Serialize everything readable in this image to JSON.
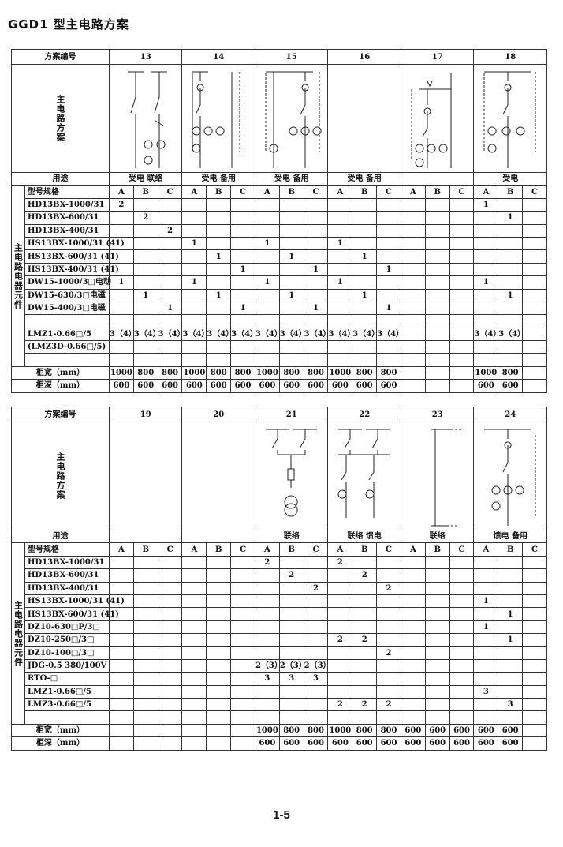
{
  "title": "GGD1 型主电路方案",
  "page_number": "1-5",
  "labels": {
    "scheme_no": "方案编号",
    "circuit": "主电路方案",
    "purpose": "用途",
    "model": "型号规格",
    "components": "主电路电器元件",
    "width": "柜宽（mm）",
    "depth": "柜深（mm）",
    "sub": [
      "A",
      "B",
      "C"
    ]
  },
  "tables": [
    {
      "schemes": [
        "13",
        "14",
        "15",
        "16",
        "17",
        "18"
      ],
      "purposes": [
        "受电 联络",
        "受电 备用",
        "受电 备用",
        "受电 备用",
        "",
        "受电"
      ],
      "rows": [
        {
          "name": "HD13BX-1000/31",
          "v": [
            "2",
            "",
            "",
            "",
            "",
            "",
            "",
            "",
            "",
            "",
            "",
            "",
            "",
            "",
            "",
            "1",
            "",
            ""
          ]
        },
        {
          "name": "HD13BX-600/31",
          "v": [
            "",
            "2",
            "",
            "",
            "",
            "",
            "",
            "",
            "",
            "",
            "",
            "",
            "",
            "",
            "",
            "",
            "1",
            ""
          ]
        },
        {
          "name": "HD13BX-400/31",
          "v": [
            "",
            "",
            "2",
            "",
            "",
            "",
            "",
            "",
            "",
            "",
            "",
            "",
            "",
            "",
            "",
            "",
            "",
            ""
          ]
        },
        {
          "name": "HS13BX-1000/31 (41)",
          "v": [
            "",
            "",
            "",
            "1",
            "",
            "",
            "1",
            "",
            "",
            "1",
            "",
            "",
            "",
            "",
            "",
            "",
            "",
            ""
          ]
        },
        {
          "name": "HS13BX-600/31 (41)",
          "v": [
            "",
            "",
            "",
            "",
            "1",
            "",
            "",
            "1",
            "",
            "",
            "1",
            "",
            "",
            "",
            "",
            "",
            "",
            ""
          ]
        },
        {
          "name": "HS13BX-400/31 (41)",
          "v": [
            "",
            "",
            "",
            "",
            "",
            "1",
            "",
            "",
            "1",
            "",
            "",
            "1",
            "",
            "",
            "",
            "",
            "",
            ""
          ]
        },
        {
          "name": "DW15-1000/3□电动",
          "v": [
            "1",
            "",
            "",
            "1",
            "",
            "",
            "1",
            "",
            "",
            "1",
            "",
            "",
            "",
            "",
            "",
            "1",
            "",
            ""
          ]
        },
        {
          "name": "DW15-630/3□电磁",
          "v": [
            "",
            "1",
            "",
            "",
            "1",
            "",
            "",
            "1",
            "",
            "",
            "1",
            "",
            "",
            "",
            "",
            "",
            "1",
            ""
          ]
        },
        {
          "name": "DW15-400/3□电磁",
          "v": [
            "",
            "",
            "1",
            "",
            "",
            "1",
            "",
            "",
            "1",
            "",
            "",
            "1",
            "",
            "",
            "",
            "",
            "",
            ""
          ]
        },
        {
          "name": "",
          "v": [
            "",
            "",
            "",
            "",
            "",
            "",
            "",
            "",
            "",
            "",
            "",
            "",
            "",
            "",
            "",
            "",
            "",
            ""
          ]
        },
        {
          "name": "LMZ1-0.66□/5",
          "v": [
            "3（4）",
            "3（4）",
            "3（4）",
            "3（4）",
            "3（4）",
            "3（4）",
            "3（4）",
            "3（4）",
            "3（4）",
            "3（4）",
            "3（4）",
            "3（4）",
            "",
            "",
            "",
            "3（4）",
            "3（4）",
            ""
          ]
        },
        {
          "name": "(LMZ3D-0.66□/5)",
          "v": [
            "",
            "",
            "",
            "",
            "",
            "",
            "",
            "",
            "",
            "",
            "",
            "",
            "",
            "",
            "",
            "",
            "",
            ""
          ]
        },
        {
          "name": "",
          "v": [
            "",
            "",
            "",
            "",
            "",
            "",
            "",
            "",
            "",
            "",
            "",
            "",
            "",
            "",
            "",
            "",
            "",
            ""
          ]
        }
      ],
      "width": [
        "1000",
        "800",
        "800",
        "1000",
        "800",
        "800",
        "1000",
        "800",
        "800",
        "1000",
        "800",
        "800",
        "",
        "",
        "",
        "1000",
        "800",
        ""
      ],
      "depth": [
        "600",
        "600",
        "600",
        "600",
        "600",
        "600",
        "600",
        "600",
        "600",
        "600",
        "600",
        "600",
        "",
        "",
        "",
        "600",
        "600",
        ""
      ]
    },
    {
      "schemes": [
        "19",
        "20",
        "21",
        "22",
        "23",
        "24"
      ],
      "purposes": [
        "",
        "",
        "联络",
        "联络 馈电",
        "联络",
        "馈电 备用"
      ],
      "rows": [
        {
          "name": "HD13BX-1000/31",
          "v": [
            "",
            "",
            "",
            "",
            "",
            "",
            "2",
            "",
            "",
            "2",
            "",
            "",
            "",
            "",
            "",
            "",
            "",
            ""
          ]
        },
        {
          "name": "HD13BX-600/31",
          "v": [
            "",
            "",
            "",
            "",
            "",
            "",
            "",
            "2",
            "",
            "",
            "2",
            "",
            "",
            "",
            "",
            "",
            "",
            ""
          ]
        },
        {
          "name": "HD13BX-400/31",
          "v": [
            "",
            "",
            "",
            "",
            "",
            "",
            "",
            "",
            "2",
            "",
            "",
            "2",
            "",
            "",
            "",
            "",
            "",
            ""
          ]
        },
        {
          "name": "HS13BX-1000/31 (41)",
          "v": [
            "",
            "",
            "",
            "",
            "",
            "",
            "",
            "",
            "",
            "",
            "",
            "",
            "",
            "",
            "",
            "1",
            "",
            ""
          ]
        },
        {
          "name": "HS13BX-600/31 (41)",
          "v": [
            "",
            "",
            "",
            "",
            "",
            "",
            "",
            "",
            "",
            "",
            "",
            "",
            "",
            "",
            "",
            "",
            "1",
            ""
          ]
        },
        {
          "name": "DZ10-630□P/3□",
          "v": [
            "",
            "",
            "",
            "",
            "",
            "",
            "",
            "",
            "",
            "",
            "",
            "",
            "",
            "",
            "",
            "1",
            "",
            ""
          ]
        },
        {
          "name": "DZ10-250□/3□",
          "v": [
            "",
            "",
            "",
            "",
            "",
            "",
            "",
            "",
            "",
            "2",
            "2",
            "",
            "",
            "",
            "",
            "",
            "1",
            ""
          ]
        },
        {
          "name": "DZ10-100□/3□",
          "v": [
            "",
            "",
            "",
            "",
            "",
            "",
            "",
            "",
            "",
            "",
            "",
            "2",
            "",
            "",
            "",
            "",
            "",
            ""
          ]
        },
        {
          "name": "JDG-0.5 380/100V",
          "v": [
            "",
            "",
            "",
            "",
            "",
            "",
            "2（3）",
            "2（3）",
            "2（3）",
            "",
            "",
            "",
            "",
            "",
            "",
            "",
            "",
            ""
          ]
        },
        {
          "name": "RTO-□",
          "v": [
            "",
            "",
            "",
            "",
            "",
            "",
            "3",
            "3",
            "3",
            "",
            "",
            "",
            "",
            "",
            "",
            "",
            "",
            ""
          ]
        },
        {
          "name": "LMZ1-0.66□/5",
          "v": [
            "",
            "",
            "",
            "",
            "",
            "",
            "",
            "",
            "",
            "",
            "",
            "",
            "",
            "",
            "",
            "3",
            "",
            ""
          ]
        },
        {
          "name": "LMZ3-0.66□/5",
          "v": [
            "",
            "",
            "",
            "",
            "",
            "",
            "",
            "",
            "",
            "2",
            "2",
            "2",
            "",
            "",
            "",
            "",
            "3",
            ""
          ]
        },
        {
          "name": "",
          "v": [
            "",
            "",
            "",
            "",
            "",
            "",
            "",
            "",
            "",
            "",
            "",
            "",
            "",
            "",
            "",
            "",
            "",
            ""
          ]
        }
      ],
      "width": [
        "",
        "",
        "",
        "",
        "",
        "",
        "1000",
        "800",
        "800",
        "1000",
        "800",
        "800",
        "600",
        "600",
        "600",
        "600",
        "600",
        ""
      ],
      "depth": [
        "",
        "",
        "",
        "",
        "",
        "",
        "600",
        "600",
        "600",
        "600",
        "600",
        "600",
        "600",
        "600",
        "600",
        "600",
        "600",
        ""
      ]
    }
  ]
}
